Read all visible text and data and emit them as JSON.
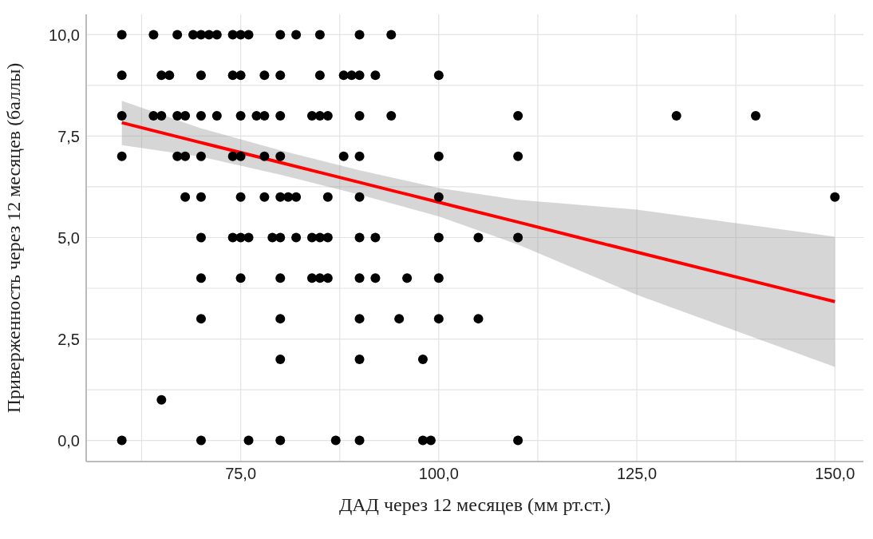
{
  "chart_data": {
    "type": "scatter",
    "xlabel": "ДАД через 12 месяцев (мм рт.ст.)",
    "ylabel": "Приверженность через 12 месяцев (баллы)",
    "xlim": [
      55.5,
      153.6
    ],
    "ylim": [
      -0.52,
      10.5
    ],
    "xticks": [
      {
        "value": 62.5,
        "label": null
      },
      {
        "value": 75,
        "label": "75,0"
      },
      {
        "value": 87.5,
        "label": null
      },
      {
        "value": 100,
        "label": "100,0"
      },
      {
        "value": 112.5,
        "label": null
      },
      {
        "value": 125,
        "label": "125,0"
      },
      {
        "value": 137.5,
        "label": null
      },
      {
        "value": 150,
        "label": "150,0"
      }
    ],
    "yticks": [
      {
        "value": 0,
        "label": "0,0"
      },
      {
        "value": 1.25,
        "label": null
      },
      {
        "value": 2.5,
        "label": "2,5"
      },
      {
        "value": 3.75,
        "label": null
      },
      {
        "value": 5,
        "label": "5,0"
      },
      {
        "value": 6.25,
        "label": null
      },
      {
        "value": 7.5,
        "label": "7,5"
      },
      {
        "value": 8.75,
        "label": null
      },
      {
        "value": 10,
        "label": "10,0"
      }
    ],
    "grid": true,
    "series": [
      {
        "color": "#000000",
        "marker": "circle",
        "x": [
          60,
          64,
          67,
          69,
          70,
          71,
          72,
          74,
          75,
          76,
          80,
          82,
          85,
          90,
          94,
          60,
          65,
          66,
          70,
          74,
          75,
          78,
          80,
          85,
          88,
          89,
          90,
          92,
          100,
          60,
          64,
          65,
          67,
          68,
          70,
          72,
          75,
          77,
          78,
          80,
          84,
          85,
          86,
          90,
          94,
          110,
          130,
          140,
          60,
          67,
          68,
          70,
          74,
          75,
          78,
          80,
          88,
          90,
          100,
          110,
          68,
          70,
          75,
          78,
          80,
          81,
          82,
          86,
          90,
          100,
          150,
          70,
          74,
          75,
          76,
          79,
          80,
          82,
          84,
          85,
          86,
          90,
          92,
          100,
          105,
          110,
          70,
          75,
          80,
          84,
          85,
          86,
          90,
          92,
          96,
          100,
          70,
          80,
          90,
          95,
          100,
          105,
          80,
          90,
          98,
          65,
          60,
          70,
          76,
          80,
          87,
          90,
          98,
          99,
          110
        ],
        "values": [
          10,
          10,
          10,
          10,
          10,
          10,
          10,
          10,
          10,
          10,
          10,
          10,
          10,
          10,
          10,
          9,
          9,
          9,
          9,
          9,
          9,
          9,
          9,
          9,
          9,
          9,
          9,
          9,
          9,
          8,
          8,
          8,
          8,
          8,
          8,
          8,
          8,
          8,
          8,
          8,
          8,
          8,
          8,
          8,
          8,
          8,
          8,
          8,
          7,
          7,
          7,
          7,
          7,
          7,
          7,
          7,
          7,
          7,
          7,
          7,
          6,
          6,
          6,
          6,
          6,
          6,
          6,
          6,
          6,
          6,
          6,
          5,
          5,
          5,
          5,
          5,
          5,
          5,
          5,
          5,
          5,
          5,
          5,
          5,
          5,
          5,
          4,
          4,
          4,
          4,
          4,
          4,
          4,
          4,
          4,
          4,
          3,
          3,
          3,
          3,
          3,
          3,
          2,
          2,
          2,
          1,
          0,
          0,
          0,
          0,
          0,
          0,
          0,
          0,
          0
        ]
      },
      {
        "type": "line",
        "color": "#ff0000",
        "line_style": "solid",
        "x": [
          60,
          70,
          80,
          90,
          100,
          110,
          125,
          150
        ],
        "values": [
          7.83,
          7.34,
          6.85,
          6.36,
          5.87,
          5.38,
          4.64,
          3.42
        ],
        "lower": [
          7.28,
          6.99,
          6.55,
          6.06,
          5.52,
          4.83,
          3.59,
          1.81
        ],
        "upper": [
          8.37,
          7.69,
          7.15,
          6.66,
          6.22,
          5.93,
          5.69,
          5.02
        ]
      }
    ]
  }
}
